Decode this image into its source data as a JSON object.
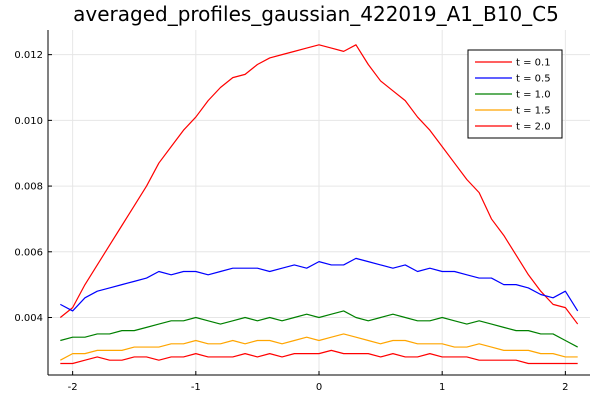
{
  "chart_data": {
    "type": "line",
    "title": "averaged_profiles_gaussian_422019_A1_B10_C5",
    "xlabel": "",
    "ylabel": "",
    "xlim": [
      -2.2,
      2.2
    ],
    "ylim": [
      0.00225,
      0.01275
    ],
    "x_ticks": [
      -2,
      -1,
      0,
      1,
      2
    ],
    "x_tick_labels": [
      "-2",
      "-1",
      "0",
      "1",
      "2"
    ],
    "y_ticks": [
      0.004,
      0.006,
      0.008,
      0.01,
      0.012
    ],
    "y_tick_labels": [
      "0.004",
      "0.006",
      "0.008",
      "0.010",
      "0.012"
    ],
    "grid": true,
    "legend_position": "top-right",
    "x": [
      -2.1,
      -2.0,
      -1.9,
      -1.8,
      -1.7,
      -1.6,
      -1.5,
      -1.4,
      -1.3,
      -1.2,
      -1.1,
      -1.0,
      -0.9,
      -0.8,
      -0.7,
      -0.6,
      -0.5,
      -0.4,
      -0.3,
      -0.2,
      -0.1,
      0.0,
      0.1,
      0.2,
      0.3,
      0.4,
      0.5,
      0.6,
      0.7,
      0.8,
      0.9,
      1.0,
      1.1,
      1.2,
      1.3,
      1.4,
      1.5,
      1.6,
      1.7,
      1.8,
      1.9,
      2.0,
      2.1
    ],
    "series": [
      {
        "name": "t = 0.1",
        "color": "#ff0000",
        "values": [
          0.004,
          0.0043,
          0.005,
          0.0056,
          0.0062,
          0.0068,
          0.0074,
          0.008,
          0.0087,
          0.0092,
          0.0097,
          0.0101,
          0.0106,
          0.011,
          0.0113,
          0.0114,
          0.0117,
          0.0119,
          0.012,
          0.0121,
          0.0122,
          0.0123,
          0.0122,
          0.0121,
          0.0123,
          0.0117,
          0.0112,
          0.0109,
          0.0106,
          0.0101,
          0.0097,
          0.0092,
          0.0087,
          0.0082,
          0.0078,
          0.007,
          0.0065,
          0.0059,
          0.0053,
          0.0048,
          0.0044,
          0.0043,
          0.0038
        ]
      },
      {
        "name": "t = 0.5",
        "color": "#0000ff",
        "values": [
          0.0044,
          0.0042,
          0.0046,
          0.0048,
          0.0049,
          0.005,
          0.0051,
          0.0052,
          0.0054,
          0.0053,
          0.0054,
          0.0054,
          0.0053,
          0.0054,
          0.0055,
          0.0055,
          0.0055,
          0.0054,
          0.0055,
          0.0056,
          0.0055,
          0.0057,
          0.0056,
          0.0056,
          0.0058,
          0.0057,
          0.0056,
          0.0055,
          0.0056,
          0.0054,
          0.0055,
          0.0054,
          0.0054,
          0.0053,
          0.0052,
          0.0052,
          0.005,
          0.005,
          0.0049,
          0.0047,
          0.0046,
          0.0048,
          0.0042
        ]
      },
      {
        "name": "t = 1.0",
        "color": "#008000",
        "values": [
          0.0033,
          0.0034,
          0.0034,
          0.0035,
          0.0035,
          0.0036,
          0.0036,
          0.0037,
          0.0038,
          0.0039,
          0.0039,
          0.004,
          0.0039,
          0.0038,
          0.0039,
          0.004,
          0.0039,
          0.004,
          0.0039,
          0.004,
          0.0041,
          0.004,
          0.0041,
          0.0042,
          0.004,
          0.0039,
          0.004,
          0.0041,
          0.004,
          0.0039,
          0.0039,
          0.004,
          0.0039,
          0.0038,
          0.0039,
          0.0038,
          0.0037,
          0.0036,
          0.0036,
          0.0035,
          0.0035,
          0.0033,
          0.0031
        ]
      },
      {
        "name": "t = 1.5",
        "color": "#ffa500",
        "values": [
          0.0027,
          0.0029,
          0.0029,
          0.003,
          0.003,
          0.003,
          0.0031,
          0.0031,
          0.0031,
          0.0032,
          0.0032,
          0.0033,
          0.0032,
          0.0032,
          0.0033,
          0.0032,
          0.0033,
          0.0033,
          0.0032,
          0.0033,
          0.0034,
          0.0033,
          0.0034,
          0.0035,
          0.0034,
          0.0033,
          0.0032,
          0.0033,
          0.0033,
          0.0032,
          0.0032,
          0.0032,
          0.0031,
          0.0031,
          0.0032,
          0.0031,
          0.003,
          0.003,
          0.003,
          0.0029,
          0.0029,
          0.0028,
          0.0028
        ]
      },
      {
        "name": "t = 2.0",
        "color": "#ff0000",
        "values": [
          0.0026,
          0.0026,
          0.0027,
          0.0028,
          0.0027,
          0.0027,
          0.0028,
          0.0028,
          0.0027,
          0.0028,
          0.0028,
          0.0029,
          0.0028,
          0.0028,
          0.0028,
          0.0029,
          0.0028,
          0.0029,
          0.0028,
          0.0029,
          0.0029,
          0.0029,
          0.003,
          0.0029,
          0.0029,
          0.0029,
          0.0028,
          0.0029,
          0.0028,
          0.0028,
          0.0029,
          0.0028,
          0.0028,
          0.0028,
          0.0027,
          0.0027,
          0.0027,
          0.0027,
          0.0026,
          0.0026,
          0.0026,
          0.0026,
          0.0026
        ]
      }
    ]
  }
}
